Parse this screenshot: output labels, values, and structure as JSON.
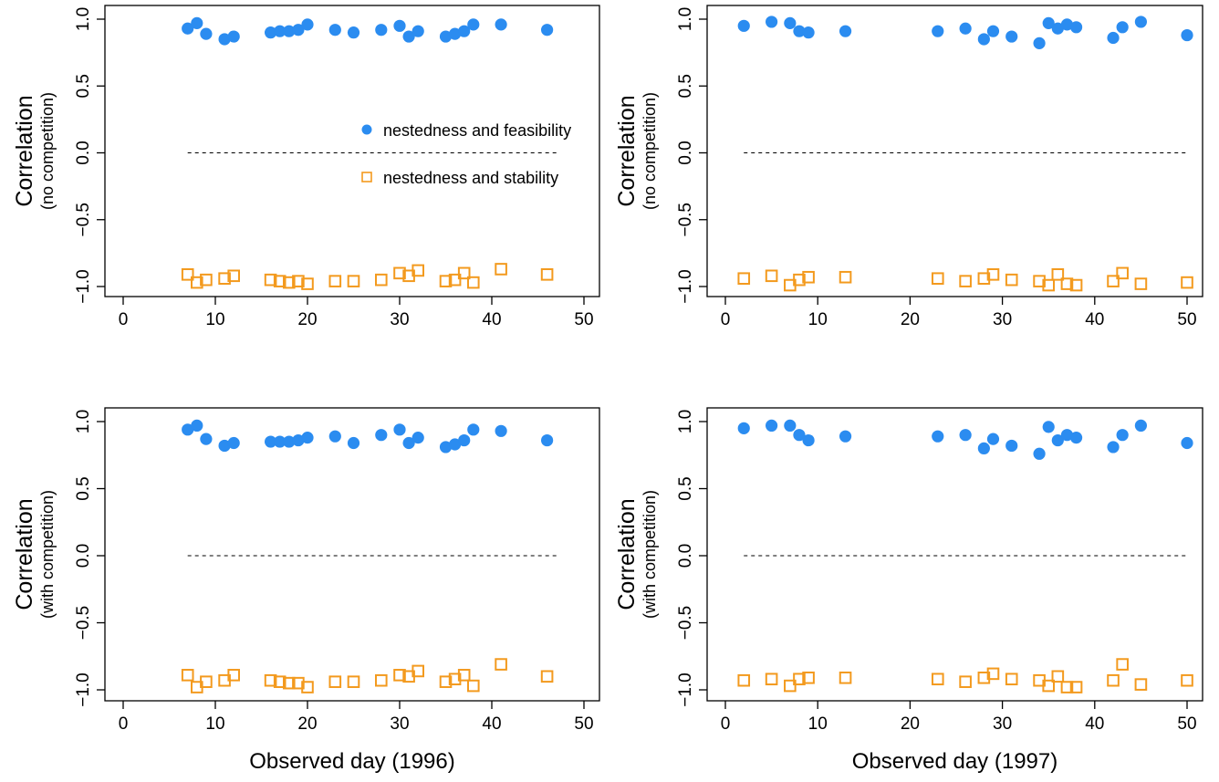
{
  "colors": {
    "feasibility": "#2b8cf0",
    "stability": "#f39a1e",
    "axis": "#000000"
  },
  "legend": {
    "feasibility_label": "nestedness and feasibility",
    "stability_label": "nestedness and stability"
  },
  "chart_data": [
    {
      "type": "scatter",
      "ylabel": "Correlation",
      "ylabel_sub": "(no competition)",
      "xlabel": "",
      "xlim": [
        0,
        50
      ],
      "ylim": [
        -1,
        1
      ],
      "xticks": [
        0,
        10,
        20,
        30,
        40,
        50
      ],
      "yticks": [
        "-1.0",
        "-0.5",
        "0.0",
        "0.5",
        "1.0"
      ],
      "reference_line": {
        "y": 0,
        "x": [
          7,
          47
        ],
        "style": "dashed"
      },
      "legend": "inside-right",
      "grid": false,
      "series": [
        {
          "name": "nestedness and feasibility",
          "marker": "filled-circle",
          "x": [
            7,
            8,
            9,
            11,
            12,
            16,
            17,
            18,
            19,
            20,
            23,
            25,
            28,
            30,
            31,
            32,
            35,
            36,
            37,
            38,
            41,
            46
          ],
          "y": [
            0.93,
            0.97,
            0.89,
            0.85,
            0.87,
            0.9,
            0.91,
            0.91,
            0.92,
            0.96,
            0.92,
            0.9,
            0.92,
            0.95,
            0.87,
            0.91,
            0.87,
            0.89,
            0.91,
            0.96,
            0.96,
            0.92
          ]
        },
        {
          "name": "nestedness and stability",
          "marker": "open-square",
          "x": [
            7,
            8,
            9,
            11,
            12,
            16,
            17,
            18,
            19,
            20,
            23,
            25,
            28,
            30,
            31,
            32,
            35,
            36,
            37,
            38,
            41,
            46
          ],
          "y": [
            -0.91,
            -0.97,
            -0.95,
            -0.94,
            -0.92,
            -0.95,
            -0.96,
            -0.97,
            -0.96,
            -0.98,
            -0.96,
            -0.96,
            -0.95,
            -0.9,
            -0.92,
            -0.88,
            -0.96,
            -0.95,
            -0.9,
            -0.97,
            -0.87,
            -0.91
          ]
        }
      ]
    },
    {
      "type": "scatter",
      "ylabel": "Correlation",
      "ylabel_sub": "(no competition)",
      "xlabel": "",
      "xlim": [
        0,
        50
      ],
      "ylim": [
        -1,
        1
      ],
      "xticks": [
        0,
        10,
        20,
        30,
        40,
        50
      ],
      "yticks": [
        "-1.0",
        "-0.5",
        "0.0",
        "0.5",
        "1.0"
      ],
      "reference_line": {
        "y": 0,
        "x": [
          2,
          50
        ],
        "style": "dashed"
      },
      "grid": false,
      "series": [
        {
          "name": "nestedness and feasibility",
          "marker": "filled-circle",
          "x": [
            2,
            5,
            7,
            8,
            9,
            13,
            23,
            26,
            28,
            29,
            31,
            34,
            35,
            36,
            37,
            38,
            42,
            43,
            45,
            50
          ],
          "y": [
            0.95,
            0.98,
            0.97,
            0.91,
            0.9,
            0.91,
            0.91,
            0.93,
            0.85,
            0.91,
            0.87,
            0.82,
            0.97,
            0.93,
            0.96,
            0.94,
            0.86,
            0.94,
            0.98,
            0.88
          ]
        },
        {
          "name": "nestedness and stability",
          "marker": "open-square",
          "x": [
            2,
            5,
            7,
            8,
            9,
            13,
            23,
            26,
            28,
            29,
            31,
            34,
            35,
            36,
            37,
            38,
            42,
            43,
            45,
            50
          ],
          "y": [
            -0.94,
            -0.92,
            -0.99,
            -0.95,
            -0.93,
            -0.93,
            -0.94,
            -0.96,
            -0.94,
            -0.91,
            -0.95,
            -0.96,
            -0.99,
            -0.91,
            -0.98,
            -0.99,
            -0.96,
            -0.9,
            -0.98,
            -0.97
          ]
        }
      ]
    },
    {
      "type": "scatter",
      "ylabel": "Correlation",
      "ylabel_sub": "(with competition)",
      "xlabel": "Observed day (1996)",
      "xlim": [
        0,
        50
      ],
      "ylim": [
        -1,
        1
      ],
      "xticks": [
        0,
        10,
        20,
        30,
        40,
        50
      ],
      "yticks": [
        "-1.0",
        "-0.5",
        "0.0",
        "0.5",
        "1.0"
      ],
      "reference_line": {
        "y": 0,
        "x": [
          7,
          47
        ],
        "style": "dashed"
      },
      "grid": false,
      "series": [
        {
          "name": "nestedness and feasibility",
          "marker": "filled-circle",
          "x": [
            7,
            8,
            9,
            11,
            12,
            16,
            17,
            18,
            19,
            20,
            23,
            25,
            28,
            30,
            31,
            32,
            35,
            36,
            37,
            38,
            41,
            46
          ],
          "y": [
            0.94,
            0.97,
            0.87,
            0.82,
            0.84,
            0.85,
            0.85,
            0.85,
            0.86,
            0.88,
            0.89,
            0.84,
            0.9,
            0.94,
            0.84,
            0.88,
            0.81,
            0.83,
            0.86,
            0.94,
            0.93,
            0.86
          ]
        },
        {
          "name": "nestedness and stability",
          "marker": "open-square",
          "x": [
            7,
            8,
            9,
            11,
            12,
            16,
            17,
            18,
            19,
            20,
            23,
            25,
            28,
            30,
            31,
            32,
            35,
            36,
            37,
            38,
            41,
            46
          ],
          "y": [
            -0.89,
            -0.98,
            -0.94,
            -0.93,
            -0.89,
            -0.93,
            -0.94,
            -0.95,
            -0.95,
            -0.98,
            -0.94,
            -0.94,
            -0.93,
            -0.89,
            -0.9,
            -0.86,
            -0.94,
            -0.92,
            -0.89,
            -0.97,
            -0.81,
            -0.9
          ]
        }
      ]
    },
    {
      "type": "scatter",
      "ylabel": "Correlation",
      "ylabel_sub": "(with competition)",
      "xlabel": "Observed day (1997)",
      "xlim": [
        0,
        50
      ],
      "ylim": [
        -1,
        1
      ],
      "xticks": [
        0,
        10,
        20,
        30,
        40,
        50
      ],
      "yticks": [
        "-1.0",
        "-0.5",
        "0.0",
        "0.5",
        "1.0"
      ],
      "reference_line": {
        "y": 0,
        "x": [
          2,
          50
        ],
        "style": "dashed"
      },
      "grid": false,
      "series": [
        {
          "name": "nestedness and feasibility",
          "marker": "filled-circle",
          "x": [
            2,
            5,
            7,
            8,
            9,
            13,
            23,
            26,
            28,
            29,
            31,
            34,
            35,
            36,
            37,
            38,
            42,
            43,
            45,
            50
          ],
          "y": [
            0.95,
            0.97,
            0.97,
            0.9,
            0.86,
            0.89,
            0.89,
            0.9,
            0.8,
            0.87,
            0.82,
            0.76,
            0.96,
            0.86,
            0.9,
            0.88,
            0.81,
            0.9,
            0.97,
            0.84
          ]
        },
        {
          "name": "nestedness and stability",
          "marker": "open-square",
          "x": [
            2,
            5,
            7,
            8,
            9,
            13,
            23,
            26,
            28,
            29,
            31,
            34,
            35,
            36,
            37,
            38,
            42,
            43,
            45,
            50
          ],
          "y": [
            -0.93,
            -0.92,
            -0.97,
            -0.92,
            -0.91,
            -0.91,
            -0.92,
            -0.94,
            -0.91,
            -0.88,
            -0.92,
            -0.93,
            -0.97,
            -0.9,
            -0.98,
            -0.98,
            -0.93,
            -0.81,
            -0.96,
            -0.93
          ]
        }
      ]
    }
  ]
}
